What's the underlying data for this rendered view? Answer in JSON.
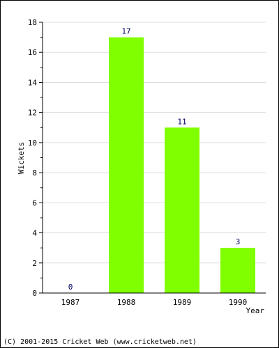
{
  "chart_data": {
    "type": "bar",
    "categories": [
      "1987",
      "1988",
      "1989",
      "1990"
    ],
    "values": [
      0,
      17,
      11,
      3
    ],
    "data_labels": [
      "0",
      "17",
      "11",
      "3"
    ],
    "xlabel": "Year",
    "ylabel": "Wickets",
    "ylim": [
      0,
      18
    ],
    "yticks": [
      0,
      2,
      4,
      6,
      8,
      10,
      12,
      14,
      16,
      18
    ],
    "grid": true,
    "legend": "none",
    "colors": {
      "bar": "#80ff00",
      "grid": "#dddddd",
      "axis": "#000000",
      "value_label": "#000066"
    }
  },
  "footer": {
    "copyright": "(C) 2001-2015 Cricket Web (www.cricketweb.net)"
  }
}
